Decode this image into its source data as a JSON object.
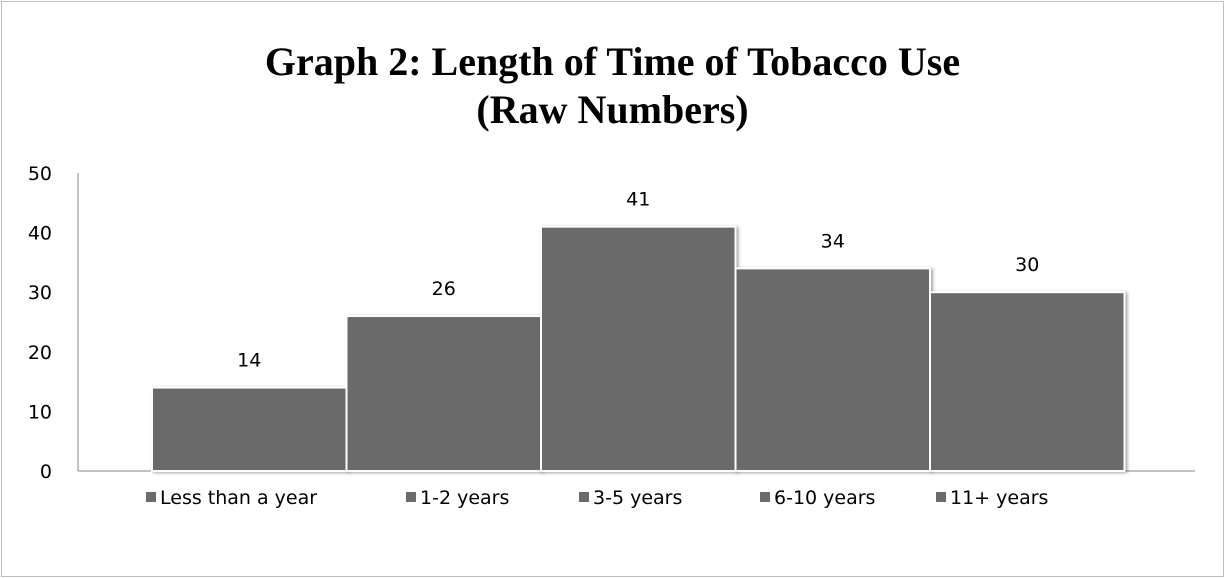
{
  "chart_data": {
    "type": "bar",
    "title_line1": "Graph 2: Length of Time of Tobacco Use",
    "title_line2": "(Raw Numbers)",
    "categories": [
      "Less than a year",
      "1-2 years",
      "3-5 years",
      "6-10 years",
      "11+ years"
    ],
    "values": [
      14,
      26,
      41,
      34,
      30
    ],
    "ylim": [
      0,
      50
    ],
    "yticks": [
      0,
      10,
      20,
      30,
      40,
      50
    ],
    "bar_color": "#6b6b6b",
    "grid": false,
    "legend_position": "bottom"
  }
}
